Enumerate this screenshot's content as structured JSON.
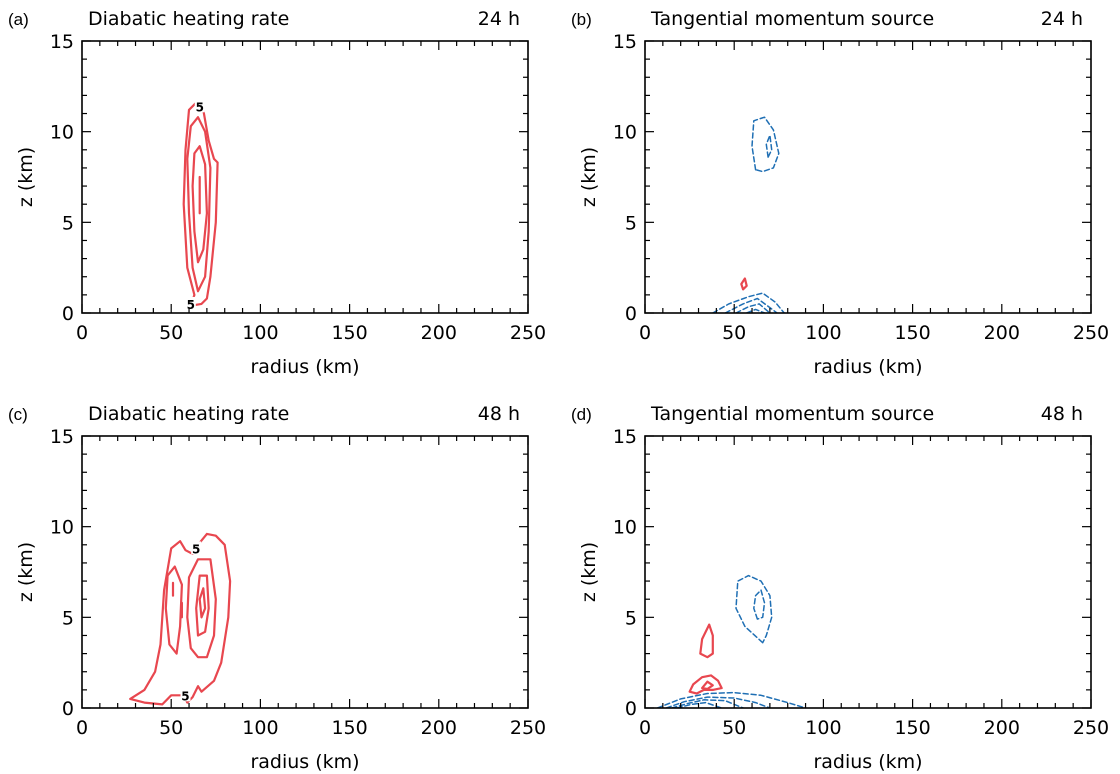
{
  "figure": {
    "panels": [
      {
        "label": "(a)",
        "title": "Diabatic heating rate",
        "time": "24 h"
      },
      {
        "label": "(b)",
        "title": "Tangential momentum source",
        "time": "24 h"
      },
      {
        "label": "(c)",
        "title": "Diabatic heating rate",
        "time": "48 h"
      },
      {
        "label": "(d)",
        "title": "Tangential momentum source",
        "time": "48 h"
      }
    ]
  },
  "chart_data": [
    {
      "type": "contour",
      "label": "(a)",
      "title": "Diabatic heating rate",
      "time": "24 h",
      "xlabel": "radius (km)",
      "ylabel": "z (km)",
      "xlim": [
        0,
        250
      ],
      "ylim": [
        0,
        15
      ],
      "xticks": [
        0,
        50,
        100,
        150,
        200,
        250
      ],
      "yticks": [
        0,
        5,
        10,
        15
      ],
      "colors": {
        "positive": "#e8474f",
        "negative": "#1f6fb4"
      },
      "contours": [
        {
          "sign": "positive",
          "points": [
            [
              61,
              0.4
            ],
            [
              63,
              1.0
            ],
            [
              59,
              2.5
            ],
            [
              57,
              6.0
            ],
            [
              58,
              9.0
            ],
            [
              60,
              11.2
            ],
            [
              64,
              11.6
            ],
            [
              68,
              11.2
            ],
            [
              71,
              9.5
            ],
            [
              74,
              8.5
            ],
            [
              76,
              8.3
            ],
            [
              75,
              5.0
            ],
            [
              72,
              2.0
            ],
            [
              70,
              0.8
            ],
            [
              67,
              0.5
            ]
          ],
          "label": "5",
          "label_at": [
            [
              66,
              11.4
            ],
            [
              61,
              0.5
            ]
          ]
        },
        {
          "sign": "positive",
          "points": [
            [
              65,
              1.2
            ],
            [
              62,
              2.5
            ],
            [
              60,
              5.5
            ],
            [
              59,
              8.5
            ],
            [
              61,
              10.3
            ],
            [
              65,
              10.8
            ],
            [
              69,
              10.0
            ],
            [
              72,
              8.0
            ],
            [
              71,
              4.5
            ],
            [
              69,
              2.0
            ]
          ]
        },
        {
          "sign": "positive",
          "points": [
            [
              65,
              2.8
            ],
            [
              63,
              4.5
            ],
            [
              62,
              7.0
            ],
            [
              63,
              8.8
            ],
            [
              66,
              9.2
            ],
            [
              69,
              8.2
            ],
            [
              70,
              5.5
            ],
            [
              68,
              3.5
            ]
          ]
        },
        {
          "sign": "positive",
          "points": [
            [
              66,
              5.5
            ],
            [
              66,
              7.5
            ]
          ],
          "open": true
        }
      ]
    },
    {
      "type": "contour",
      "label": "(b)",
      "title": "Tangential momentum source",
      "time": "24 h",
      "xlabel": "radius (km)",
      "ylabel": "z (km)",
      "xlim": [
        0,
        250
      ],
      "ylim": [
        0,
        15
      ],
      "xticks": [
        0,
        50,
        100,
        150,
        200,
        250
      ],
      "yticks": [
        0,
        5,
        10,
        15
      ],
      "colors": {
        "positive": "#e8474f",
        "negative": "#1f6fb4"
      },
      "contours": [
        {
          "sign": "negative",
          "points": [
            [
              62,
              7.9
            ],
            [
              60,
              9.2
            ],
            [
              61,
              10.6
            ],
            [
              67,
              10.8
            ],
            [
              72,
              10.1
            ],
            [
              75,
              8.8
            ],
            [
              72,
              8.0
            ],
            [
              66,
              7.8
            ]
          ]
        },
        {
          "sign": "negative",
          "points": [
            [
              69,
              8.6
            ],
            [
              68,
              9.3
            ],
            [
              70,
              9.8
            ],
            [
              71,
              9.0
            ]
          ]
        },
        {
          "sign": "positive",
          "points": [
            [
              55,
              1.3
            ],
            [
              54,
              1.6
            ],
            [
              56,
              1.9
            ],
            [
              57,
              1.5
            ]
          ]
        },
        {
          "sign": "negative",
          "points": [
            [
              38,
              0
            ],
            [
              47,
              0.5
            ],
            [
              58,
              0.9
            ],
            [
              66,
              1.1
            ],
            [
              73,
              0.6
            ],
            [
              78,
              0
            ]
          ],
          "open": true
        },
        {
          "sign": "negative",
          "points": [
            [
              45,
              0
            ],
            [
              55,
              0.5
            ],
            [
              63,
              0.8
            ],
            [
              70,
              0.3
            ],
            [
              74,
              0
            ]
          ],
          "open": true
        },
        {
          "sign": "negative",
          "points": [
            [
              51,
              0
            ],
            [
              58,
              0.35
            ],
            [
              64,
              0.5
            ],
            [
              70,
              0
            ]
          ],
          "open": true
        },
        {
          "sign": "negative",
          "points": [
            [
              57,
              0
            ],
            [
              62,
              0.2
            ],
            [
              67,
              0
            ]
          ],
          "open": true
        }
      ]
    },
    {
      "type": "contour",
      "label": "(c)",
      "title": "Diabatic heating rate",
      "time": "48 h",
      "xlabel": "radius (km)",
      "ylabel": "z (km)",
      "xlim": [
        0,
        250
      ],
      "ylim": [
        0,
        15
      ],
      "xticks": [
        0,
        50,
        100,
        150,
        200,
        250
      ],
      "yticks": [
        0,
        5,
        10,
        15
      ],
      "colors": {
        "positive": "#e8474f",
        "negative": "#1f6fb4"
      },
      "contours": [
        {
          "sign": "positive",
          "points": [
            [
              27,
              0.5
            ],
            [
              35,
              1.0
            ],
            [
              41,
              2.0
            ],
            [
              44,
              3.5
            ],
            [
              46,
              6.5
            ],
            [
              50,
              8.8
            ],
            [
              55,
              9.2
            ],
            [
              58,
              8.7
            ],
            [
              62,
              8.5
            ],
            [
              65,
              9.0
            ],
            [
              70,
              9.6
            ],
            [
              75,
              9.5
            ],
            [
              80,
              9.0
            ],
            [
              83,
              7.0
            ],
            [
              82,
              5.0
            ],
            [
              78,
              2.5
            ],
            [
              74,
              1.5
            ],
            [
              67,
              0.9
            ],
            [
              65,
              1.2
            ],
            [
              62,
              0.6
            ],
            [
              59,
              0.3
            ],
            [
              57,
              0.7
            ],
            [
              50,
              0.7
            ],
            [
              45,
              0.2
            ],
            [
              35,
              0.3
            ]
          ],
          "label": "5",
          "label_at": [
            [
              64,
              8.8
            ],
            [
              58,
              0.7
            ]
          ]
        },
        {
          "sign": "positive",
          "points": [
            [
              49,
              3.5
            ],
            [
              47,
              5.5
            ],
            [
              48,
              7.3
            ],
            [
              52,
              7.8
            ],
            [
              56,
              6.8
            ],
            [
              55,
              4.5
            ],
            [
              53,
              3.0
            ]
          ]
        },
        {
          "sign": "positive",
          "points": [
            [
              51,
              6.2
            ],
            [
              51,
              6.9
            ]
          ],
          "open": true
        },
        {
          "sign": "positive",
          "points": [
            [
              56,
              5.0
            ],
            [
              56,
              5.8
            ]
          ],
          "open": true
        },
        {
          "sign": "positive",
          "points": [
            [
              61,
              3.3
            ],
            [
              59,
              5.0
            ],
            [
              60,
              7.2
            ],
            [
              65,
              8.2
            ],
            [
              72,
              8.2
            ],
            [
              75,
              6.0
            ],
            [
              74,
              4.0
            ],
            [
              70,
              2.8
            ],
            [
              65,
              2.8
            ]
          ]
        },
        {
          "sign": "positive",
          "points": [
            [
              65,
              4.0
            ],
            [
              64,
              5.5
            ],
            [
              66,
              7.3
            ],
            [
              70,
              7.3
            ],
            [
              71,
              5.5
            ],
            [
              69,
              4.2
            ]
          ]
        },
        {
          "sign": "positive",
          "points": [
            [
              67,
              5.0
            ],
            [
              66,
              6.0
            ],
            [
              68,
              6.6
            ],
            [
              69,
              5.5
            ]
          ]
        }
      ]
    },
    {
      "type": "contour",
      "label": "(d)",
      "title": "Tangential momentum source",
      "time": "48 h",
      "xlabel": "radius (km)",
      "ylabel": "z (km)",
      "xlim": [
        0,
        250
      ],
      "ylim": [
        0,
        15
      ],
      "xticks": [
        0,
        50,
        100,
        150,
        200,
        250
      ],
      "yticks": [
        0,
        5,
        10,
        15
      ],
      "colors": {
        "positive": "#e8474f",
        "negative": "#1f6fb4"
      },
      "contours": [
        {
          "sign": "negative",
          "points": [
            [
              66,
              3.6
            ],
            [
              56,
              4.5
            ],
            [
              51,
              5.5
            ],
            [
              52,
              7.0
            ],
            [
              58,
              7.3
            ],
            [
              65,
              7.0
            ],
            [
              70,
              6.2
            ],
            [
              71,
              5.0
            ],
            [
              68,
              4.0
            ]
          ]
        },
        {
          "sign": "negative",
          "points": [
            [
              63,
              4.9
            ],
            [
              61,
              5.5
            ],
            [
              62,
              6.2
            ],
            [
              65,
              6.5
            ],
            [
              67,
              5.8
            ],
            [
              66,
              5.0
            ]
          ]
        },
        {
          "sign": "positive",
          "points": [
            [
              35,
              2.8
            ],
            [
              31,
              3.0
            ],
            [
              32,
              3.8
            ],
            [
              36,
              4.6
            ],
            [
              38,
              4.0
            ],
            [
              38,
              3.0
            ]
          ]
        },
        {
          "sign": "positive",
          "points": [
            [
              25,
              0.9
            ],
            [
              27,
              1.3
            ],
            [
              32,
              1.7
            ],
            [
              37,
              1.8
            ],
            [
              41,
              1.5
            ],
            [
              43,
              1.1
            ],
            [
              38,
              1.0
            ],
            [
              33,
              1.0
            ],
            [
              29,
              0.8
            ]
          ]
        },
        {
          "sign": "positive",
          "points": [
            [
              32,
              1.1
            ],
            [
              35,
              1.45
            ],
            [
              38,
              1.25
            ],
            [
              35,
              1.05
            ]
          ]
        },
        {
          "sign": "negative",
          "points": [
            [
              7,
              0
            ],
            [
              20,
              0.5
            ],
            [
              35,
              0.8
            ],
            [
              50,
              0.85
            ],
            [
              65,
              0.7
            ],
            [
              80,
              0.3
            ],
            [
              90,
              0
            ]
          ],
          "open": true
        },
        {
          "sign": "negative",
          "points": [
            [
              12,
              0
            ],
            [
              22,
              0.35
            ],
            [
              35,
              0.6
            ],
            [
              50,
              0.55
            ],
            [
              62,
              0.3
            ],
            [
              70,
              0
            ]
          ],
          "open": true
        },
        {
          "sign": "negative",
          "points": [
            [
              15,
              0
            ],
            [
              24,
              0.25
            ],
            [
              33,
              0.45
            ],
            [
              45,
              0.4
            ],
            [
              55,
              0
            ]
          ],
          "open": true
        },
        {
          "sign": "negative",
          "points": [
            [
              18,
              0
            ],
            [
              26,
              0.2
            ],
            [
              34,
              0.3
            ],
            [
              43,
              0
            ]
          ],
          "open": true
        }
      ]
    }
  ]
}
